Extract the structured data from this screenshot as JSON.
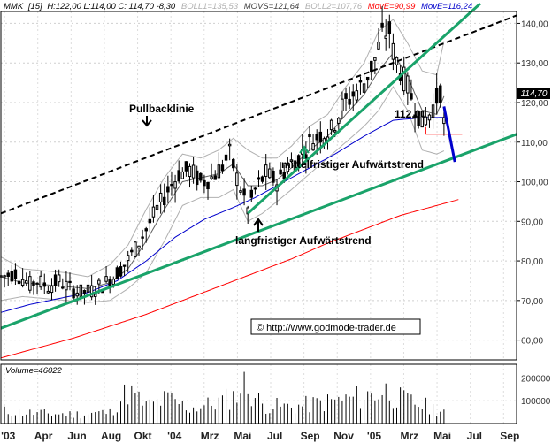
{
  "header": {
    "symbol": "MMK",
    "interval": "[15]",
    "ohlc": "H:122,00 L:114,00 C: 114,70 -8,30",
    "boll1": "BOLL1=135,53",
    "movs": "MOVS=121,64",
    "boll2": "BOLL2=107,76",
    "move1": "MovE=90,99",
    "move2": "MovE=116,24"
  },
  "volume_label": "Volume=46022",
  "last_price_label": "114,70",
  "copyright": "© http://www.godmode-trader.de",
  "annotations": {
    "pullback": "Pullbacklinie",
    "mid_trend": "mittelfristiger Aufwärtstrend",
    "long_trend": "langfristiger Aufwärtstrend",
    "level": "112,00"
  },
  "colors": {
    "trend_green": "#1aa36a",
    "move_red": "#ff0000",
    "move_blue": "#0000cc",
    "boll_gray": "#b0b0b0",
    "movs_gray": "#606060",
    "candle": "#000000"
  },
  "chart_data": {
    "type": "candlestick",
    "price_axis": {
      "ticks": [
        60,
        70,
        80,
        90,
        100,
        110,
        120,
        130,
        140
      ],
      "tick_labels": [
        "60,00",
        "70,00",
        "80,00",
        "90,00",
        "100,00",
        "110,00",
        "120,00",
        "130,00",
        "140,00"
      ],
      "range": [
        55,
        143
      ]
    },
    "volume_axis": {
      "ticks": [
        100000,
        200000
      ],
      "tick_labels": [
        "100000",
        "200000"
      ],
      "range": [
        0,
        260000
      ]
    },
    "time_axis": {
      "labels": [
        "'03",
        "Apr",
        "Jun",
        "Aug",
        "Okt",
        "'04",
        "Mrz",
        "Mai",
        "Jul",
        "Sep",
        "Nov",
        "'05",
        "Mrz",
        "Mai",
        "Jul",
        "Sep"
      ],
      "range_weeks": [
        0,
        142
      ]
    },
    "price_guide": [
      [
        0,
        76
      ],
      [
        4,
        77
      ],
      [
        8,
        74
      ],
      [
        10,
        75
      ],
      [
        13,
        73.5
      ],
      [
        16,
        75
      ],
      [
        19,
        73
      ],
      [
        22,
        72
      ],
      [
        25,
        72.5
      ],
      [
        28,
        74
      ],
      [
        31,
        76
      ],
      [
        34,
        79
      ],
      [
        37,
        83
      ],
      [
        40,
        88
      ],
      [
        43,
        93
      ],
      [
        46,
        98
      ],
      [
        49,
        102
      ],
      [
        52,
        103
      ],
      [
        55,
        100
      ],
      [
        58,
        101
      ],
      [
        61,
        104
      ],
      [
        63,
        107
      ],
      [
        65,
        101
      ],
      [
        67,
        96
      ],
      [
        68,
        93
      ],
      [
        70,
        98
      ],
      [
        73,
        102
      ],
      [
        76,
        100
      ],
      [
        79,
        104
      ],
      [
        82,
        106
      ],
      [
        85,
        110
      ],
      [
        88,
        112
      ],
      [
        91,
        113
      ],
      [
        94,
        119
      ],
      [
        97,
        122
      ],
      [
        100,
        125
      ],
      [
        103,
        131
      ],
      [
        105,
        137
      ],
      [
        107,
        138
      ],
      [
        108,
        133
      ],
      [
        110,
        128
      ],
      [
        112,
        124
      ],
      [
        114,
        119
      ],
      [
        116,
        115
      ],
      [
        118,
        117
      ],
      [
        120,
        121
      ],
      [
        121,
        123
      ],
      [
        122,
        114.7
      ]
    ],
    "boll_upper_guide": [
      [
        0,
        81
      ],
      [
        6,
        78
      ],
      [
        12,
        77.5
      ],
      [
        18,
        77
      ],
      [
        24,
        76
      ],
      [
        30,
        79
      ],
      [
        35,
        84
      ],
      [
        40,
        93
      ],
      [
        45,
        101
      ],
      [
        50,
        107
      ],
      [
        55,
        106
      ],
      [
        60,
        108
      ],
      [
        64,
        111
      ],
      [
        68,
        108
      ],
      [
        72,
        106
      ],
      [
        76,
        106
      ],
      [
        80,
        109
      ],
      [
        85,
        114
      ],
      [
        90,
        117
      ],
      [
        95,
        124
      ],
      [
        100,
        130
      ],
      [
        104,
        138
      ],
      [
        108,
        141
      ],
      [
        112,
        135
      ],
      [
        116,
        128
      ],
      [
        120,
        127
      ],
      [
        122,
        135.5
      ]
    ],
    "boll_lower_guide": [
      [
        0,
        70
      ],
      [
        6,
        71
      ],
      [
        12,
        70.5
      ],
      [
        18,
        70
      ],
      [
        24,
        69.5
      ],
      [
        30,
        70
      ],
      [
        35,
        73
      ],
      [
        40,
        77
      ],
      [
        45,
        85
      ],
      [
        50,
        94
      ],
      [
        55,
        96
      ],
      [
        60,
        96
      ],
      [
        64,
        98
      ],
      [
        68,
        90
      ],
      [
        72,
        92
      ],
      [
        76,
        95
      ],
      [
        80,
        98
      ],
      [
        85,
        102
      ],
      [
        90,
        106
      ],
      [
        95,
        110
      ],
      [
        100,
        114
      ],
      [
        104,
        118
      ],
      [
        108,
        124
      ],
      [
        112,
        118
      ],
      [
        116,
        108
      ],
      [
        120,
        107
      ],
      [
        122,
        107.8
      ]
    ],
    "movs_guide": [
      [
        0,
        76
      ],
      [
        6,
        74.5
      ],
      [
        12,
        74
      ],
      [
        18,
        73.5
      ],
      [
        24,
        73
      ],
      [
        30,
        74.5
      ],
      [
        35,
        78
      ],
      [
        40,
        85
      ],
      [
        45,
        93
      ],
      [
        50,
        100
      ],
      [
        55,
        101
      ],
      [
        60,
        102
      ],
      [
        64,
        104.5
      ],
      [
        68,
        99
      ],
      [
        72,
        99
      ],
      [
        76,
        100.5
      ],
      [
        80,
        103.5
      ],
      [
        85,
        108
      ],
      [
        90,
        111.5
      ],
      [
        95,
        117
      ],
      [
        100,
        122
      ],
      [
        104,
        128
      ],
      [
        108,
        132.5
      ],
      [
        112,
        126.5
      ],
      [
        116,
        118
      ],
      [
        120,
        117
      ],
      [
        122,
        121.6
      ]
    ],
    "move_red_guide": [
      [
        0,
        55.5
      ],
      [
        10,
        58
      ],
      [
        20,
        60.5
      ],
      [
        30,
        63.5
      ],
      [
        40,
        66.5
      ],
      [
        50,
        70
      ],
      [
        60,
        73.5
      ],
      [
        70,
        77
      ],
      [
        80,
        80.5
      ],
      [
        90,
        84.5
      ],
      [
        100,
        88
      ],
      [
        110,
        91.5
      ],
      [
        120,
        94
      ],
      [
        126,
        95.5
      ]
    ],
    "move_blue_guide": [
      [
        0,
        67
      ],
      [
        8,
        69
      ],
      [
        16,
        70.5
      ],
      [
        24,
        72
      ],
      [
        32,
        75
      ],
      [
        40,
        80
      ],
      [
        48,
        86
      ],
      [
        56,
        90.5
      ],
      [
        64,
        93.5
      ],
      [
        70,
        96
      ],
      [
        76,
        99
      ],
      [
        84,
        103
      ],
      [
        92,
        107
      ],
      [
        100,
        111.5
      ],
      [
        108,
        115.5
      ],
      [
        116,
        116.2
      ],
      [
        122,
        116.24
      ]
    ],
    "volume_guide": [
      [
        0,
        60000
      ],
      [
        10,
        50000
      ],
      [
        20,
        45000
      ],
      [
        30,
        55000
      ],
      [
        35,
        160000
      ],
      [
        40,
        85000
      ],
      [
        46,
        120000
      ],
      [
        52,
        75000
      ],
      [
        58,
        95000
      ],
      [
        64,
        130000
      ],
      [
        67,
        190000
      ],
      [
        72,
        90000
      ],
      [
        80,
        80000
      ],
      [
        88,
        100000
      ],
      [
        96,
        120000
      ],
      [
        102,
        140000
      ],
      [
        106,
        160000
      ],
      [
        110,
        120000
      ],
      [
        116,
        90000
      ],
      [
        122,
        60000
      ]
    ],
    "trendlines": [
      {
        "name": "pullback",
        "style": "dashed",
        "from": [
          0,
          92
        ],
        "to": [
          142,
          142
        ]
      },
      {
        "name": "mid_trend",
        "style": "solid",
        "from": [
          68,
          92
        ],
        "to": [
          132,
          145
        ]
      },
      {
        "name": "long_trend",
        "style": "solid",
        "from": [
          0,
          63
        ],
        "to": [
          142,
          112
        ]
      }
    ],
    "support_level": {
      "value": 112,
      "from_week": 117,
      "to_week": 127
    },
    "projection": {
      "from": [
        122,
        119
      ],
      "to": [
        125,
        105
      ]
    }
  }
}
